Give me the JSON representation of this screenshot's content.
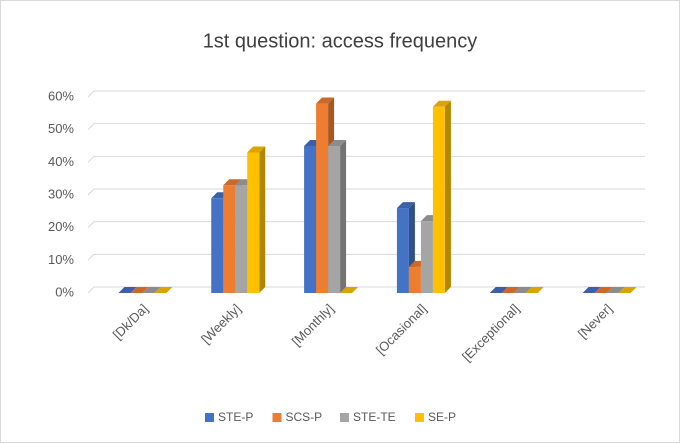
{
  "chart_data": {
    "type": "bar3d",
    "title": "1st question: access frequency",
    "categories": [
      "[Dk/Da]",
      "[Weekly]",
      "[Monthly]",
      "[Ocasional]",
      "[Exceptional]",
      "[Never]"
    ],
    "series": [
      {
        "name": "STE-P",
        "color": "#4472c4",
        "values": [
          0,
          29,
          45,
          26,
          0,
          0
        ]
      },
      {
        "name": "SCS-P",
        "color": "#ed7d31",
        "values": [
          0,
          33,
          58,
          8,
          0,
          0
        ]
      },
      {
        "name": "STE-TE",
        "color": "#a5a5a5",
        "values": [
          0,
          33,
          45,
          22,
          0,
          0
        ]
      },
      {
        "name": "SE-P",
        "color": "#ffc000",
        "values": [
          0,
          43,
          0,
          57,
          0,
          0
        ]
      }
    ],
    "ylim": [
      0,
      60
    ],
    "yticks": [
      {
        "value": 0,
        "label": "0%"
      },
      {
        "value": 10,
        "label": "10%"
      },
      {
        "value": 20,
        "label": "20%"
      },
      {
        "value": 30,
        "label": "30%"
      },
      {
        "value": 40,
        "label": "40%"
      },
      {
        "value": 50,
        "label": "50%"
      },
      {
        "value": 60,
        "label": "60%"
      }
    ],
    "grid": true,
    "legend": "bottom"
  }
}
